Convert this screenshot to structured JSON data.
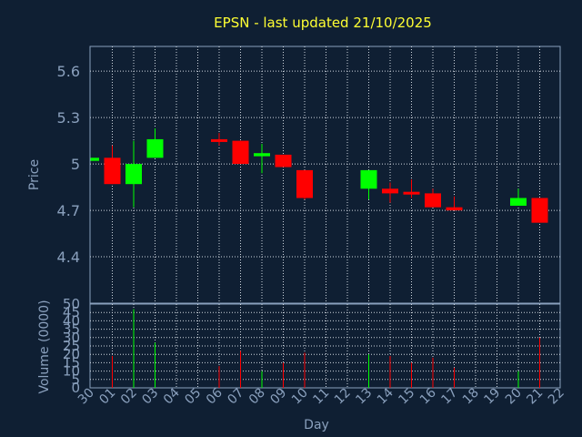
{
  "chart_data": {
    "type": "candlestick",
    "title": "EPSN - last updated 21/10/2025",
    "xlabel": "Day",
    "price_panel": {
      "ylabel": "Price",
      "yticks": [
        4.4,
        4.7,
        5,
        5.3,
        5.6
      ],
      "ytick_labels": [
        "4.4",
        "4.7",
        "5",
        "5.3",
        "5.6"
      ],
      "ylim": [
        4.1,
        5.76
      ]
    },
    "volume_panel": {
      "ylabel": "Volume (0000)",
      "yticks": [
        0,
        5,
        10,
        15,
        20,
        25,
        30,
        35,
        40,
        45,
        50
      ],
      "ytick_labels": [
        "0",
        "5",
        "10",
        "15",
        "20",
        "25",
        "30",
        "35",
        "40",
        "45",
        "50"
      ],
      "ylim": [
        0,
        50
      ]
    },
    "x_tick_labels": [
      "30",
      "01",
      "02",
      "03",
      "04",
      "05",
      "06",
      "07",
      "08",
      "09",
      "10",
      "11",
      "12",
      "13",
      "14",
      "15",
      "16",
      "17",
      "18",
      "19",
      "20",
      "21",
      "22"
    ],
    "up_color": "#00ff00",
    "down_color": "#ff0000",
    "candles": [
      {
        "day": "30",
        "open": 5.02,
        "high": 5.04,
        "low": 5.02,
        "close": 5.04,
        "volume": 0
      },
      {
        "day": "01",
        "open": 5.04,
        "high": 5.12,
        "low": 4.87,
        "close": 4.87,
        "volume": 19
      },
      {
        "day": "02",
        "open": 4.87,
        "high": 5.15,
        "low": 4.72,
        "close": 5.0,
        "volume": 47
      },
      {
        "day": "03",
        "open": 5.04,
        "high": 5.23,
        "low": 5.04,
        "close": 5.16,
        "volume": 27
      },
      {
        "day": "06",
        "open": 5.16,
        "high": 5.2,
        "low": 5.12,
        "close": 5.15,
        "volume": 13
      },
      {
        "day": "07",
        "open": 5.15,
        "high": 5.15,
        "low": 5.0,
        "close": 5.0,
        "volume": 22
      },
      {
        "day": "08",
        "open": 5.05,
        "high": 5.13,
        "low": 4.94,
        "close": 5.07,
        "volume": 10
      },
      {
        "day": "09",
        "open": 5.06,
        "high": 5.06,
        "low": 4.98,
        "close": 4.98,
        "volume": 15
      },
      {
        "day": "10",
        "open": 4.96,
        "high": 4.96,
        "low": 4.77,
        "close": 4.78,
        "volume": 21
      },
      {
        "day": "13",
        "open": 4.84,
        "high": 4.96,
        "low": 4.77,
        "close": 4.96,
        "volume": 20
      },
      {
        "day": "14",
        "open": 4.84,
        "high": 4.88,
        "low": 4.75,
        "close": 4.81,
        "volume": 19
      },
      {
        "day": "15",
        "open": 4.82,
        "high": 4.9,
        "low": 4.78,
        "close": 4.81,
        "volume": 15
      },
      {
        "day": "16",
        "open": 4.81,
        "high": 4.84,
        "low": 4.72,
        "close": 4.72,
        "volume": 18
      },
      {
        "day": "17",
        "open": 4.72,
        "high": 4.79,
        "low": 4.7,
        "close": 4.7,
        "volume": 12
      },
      {
        "day": "20",
        "open": 4.73,
        "high": 4.84,
        "low": 4.73,
        "close": 4.78,
        "volume": 10
      },
      {
        "day": "21",
        "open": 4.78,
        "high": 4.78,
        "low": 4.62,
        "close": 4.62,
        "volume": 30
      }
    ]
  }
}
